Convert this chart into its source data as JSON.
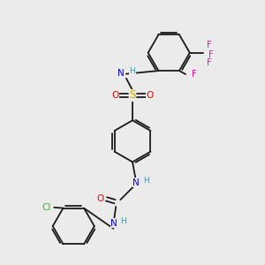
{
  "background_color": "#ebebeb",
  "bond_color": "#1a1a1a",
  "atom_colors": {
    "N": "#0000ee",
    "O": "#ee0000",
    "S": "#ccaa00",
    "Cl": "#33bb33",
    "F": "#ee00bb",
    "H": "#4a8fa0",
    "C": "#1a1a1a"
  },
  "figsize": [
    3.0,
    3.0
  ],
  "dpi": 100
}
